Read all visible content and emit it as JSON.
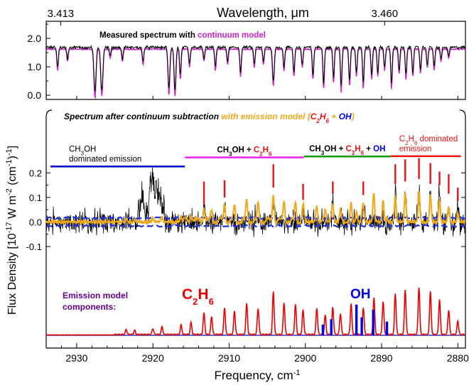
{
  "chart_data": {
    "type": "line",
    "top_axis_title": "Wavelength, μm",
    "top_axis_ticks": [
      "3.413",
      "3.460"
    ],
    "x_axis": {
      "label_main": "Frequency, cm",
      "label_sup": "-1",
      "xlim": [
        2934,
        2879
      ],
      "ticks": [
        2930,
        2920,
        2910,
        2900,
        2890,
        2880
      ]
    },
    "y_axis": {
      "label_html": "Flux Density [10<tspan baseline-shift='super' font-size='11'>-17</tspan> W m<tspan baseline-shift='super' font-size='11'>-2</tspan> (cm<tspan baseline-shift='super' font-size='11'>-1</tspan>)<tspan baseline-shift='super' font-size='11'>-1</tspan>]"
    },
    "top_panel": {
      "ylim": [
        -0.15,
        2.6
      ],
      "yticks": [
        "0.0",
        "1.0",
        "2.0"
      ],
      "annotation_black": "Measured spectrum with",
      "annotation_magenta": "continuum model",
      "series": [
        {
          "name": "Measured spectrum",
          "color": "#000000",
          "continuum": 1.68
        },
        {
          "name": "continuum model",
          "color": "#cc22cc",
          "continuum": 1.62
        }
      ],
      "absorption_lines": [
        {
          "x": 2932.5,
          "depth": 0.7,
          "w": 0.25
        },
        {
          "x": 2931.2,
          "depth": 0.4,
          "w": 0.25
        },
        {
          "x": 2927.6,
          "depth": 1.6,
          "w": 0.35
        },
        {
          "x": 2926.7,
          "depth": 1.55,
          "w": 0.35
        },
        {
          "x": 2925.6,
          "depth": 0.3,
          "w": 0.25
        },
        {
          "x": 2924.0,
          "depth": 0.4,
          "w": 0.25
        },
        {
          "x": 2921.3,
          "depth": 0.5,
          "w": 0.25
        },
        {
          "x": 2917.9,
          "depth": 1.5,
          "w": 0.3
        },
        {
          "x": 2917.1,
          "depth": 1.55,
          "w": 0.3
        },
        {
          "x": 2916.4,
          "depth": 1.0,
          "w": 0.25
        },
        {
          "x": 2915.2,
          "depth": 0.6,
          "w": 0.25
        },
        {
          "x": 2913.3,
          "depth": 0.4,
          "w": 0.25
        },
        {
          "x": 2911.8,
          "depth": 0.7,
          "w": 0.25
        },
        {
          "x": 2910.2,
          "depth": 0.5,
          "w": 0.25
        },
        {
          "x": 2908.5,
          "depth": 0.9,
          "w": 0.25
        },
        {
          "x": 2906.7,
          "depth": 0.6,
          "w": 0.25
        },
        {
          "x": 2905.5,
          "depth": 0.5,
          "w": 0.25
        },
        {
          "x": 2904.2,
          "depth": 1.2,
          "w": 0.3
        },
        {
          "x": 2902.8,
          "depth": 0.7,
          "w": 0.25
        },
        {
          "x": 2901.5,
          "depth": 0.9,
          "w": 0.25
        },
        {
          "x": 2900.4,
          "depth": 0.6,
          "w": 0.25
        },
        {
          "x": 2899.0,
          "depth": 1.0,
          "w": 0.25
        },
        {
          "x": 2897.6,
          "depth": 1.3,
          "w": 0.25
        },
        {
          "x": 2896.3,
          "depth": 1.1,
          "w": 0.25
        },
        {
          "x": 2895.3,
          "depth": 1.4,
          "w": 0.25
        },
        {
          "x": 2894.2,
          "depth": 1.2,
          "w": 0.25
        },
        {
          "x": 2893.3,
          "depth": 0.9,
          "w": 0.25
        },
        {
          "x": 2892.4,
          "depth": 1.3,
          "w": 0.25
        },
        {
          "x": 2891.3,
          "depth": 1.0,
          "w": 0.25
        },
        {
          "x": 2890.5,
          "depth": 0.9,
          "w": 0.25
        },
        {
          "x": 2889.6,
          "depth": 0.7,
          "w": 0.25
        },
        {
          "x": 2888.7,
          "depth": 1.3,
          "w": 0.25
        },
        {
          "x": 2887.7,
          "depth": 0.8,
          "w": 0.25
        },
        {
          "x": 2886.8,
          "depth": 1.0,
          "w": 0.25
        },
        {
          "x": 2885.9,
          "depth": 0.9,
          "w": 0.25
        },
        {
          "x": 2884.9,
          "depth": 0.8,
          "w": 0.25
        },
        {
          "x": 2884.0,
          "depth": 0.6,
          "w": 0.25
        },
        {
          "x": 2883.1,
          "depth": 0.7,
          "w": 0.25
        },
        {
          "x": 2882.2,
          "depth": 0.4,
          "w": 0.25
        },
        {
          "x": 2881.2,
          "depth": 0.3,
          "w": 0.25
        }
      ]
    },
    "bottom_panel": {
      "ylim": [
        -0.34,
        0.34
      ],
      "yticks": [
        "0.2",
        "0.1",
        "0.0",
        "-0.1"
      ],
      "title_black": "Spectrum after continuum subtraction",
      "title_orange": "with emission model (",
      "title_c2h6": "C",
      "title_c2h6_sub1": "2",
      "title_c2h6_h": "H",
      "title_c2h6_sub2": "6",
      "title_plus": " + ",
      "title_oh": "OH",
      "title_close": ")",
      "regions": [
        {
          "label_line1_parts": [
            "CH",
            "3",
            "OH"
          ],
          "label_line2": "dominated emission",
          "color": "#0000cc",
          "x_from": 2934,
          "x_to": 2915.8,
          "y": 0.226
        },
        {
          "label_parts": [
            "CH",
            "3",
            "OH + ",
            "C",
            "2",
            "H",
            "6"
          ],
          "color": "#ee22ee",
          "x_from": 2915.8,
          "x_to": 2900.2,
          "y": 0.263
        },
        {
          "label_parts": [
            "CH",
            "3",
            "OH + ",
            "C",
            "2",
            "H",
            "6",
            " + ",
            "OH"
          ],
          "color": "#119911",
          "x_from": 2900.2,
          "x_to": 2888.8,
          "y": 0.267
        },
        {
          "label_line1_parts": [
            "C",
            "2",
            "H",
            "6",
            " dominated"
          ],
          "label_line2": "emission",
          "color": "#ee1111",
          "x_from": 2888.8,
          "x_to": 2879.6,
          "y": 0.268
        }
      ],
      "zero_band": 0.016,
      "series": [
        {
          "name": "Spectrum after continuum subtraction",
          "color": "#000000"
        },
        {
          "name": "emission model",
          "color": "#f0a818"
        },
        {
          "name": "noise envelope",
          "color": "#2233dd"
        }
      ],
      "ethane_marks": [
        {
          "x": 2913.3,
          "top": 0.165,
          "bottom": 0.07
        },
        {
          "x": 2910.6,
          "top": 0.17,
          "bottom": 0.1
        },
        {
          "x": 2904.2,
          "top": 0.235,
          "bottom": 0.14
        },
        {
          "x": 2900.3,
          "top": 0.155,
          "bottom": 0.09
        },
        {
          "x": 2896.4,
          "top": 0.165,
          "bottom": 0.115
        },
        {
          "x": 2892.4,
          "top": 0.165,
          "bottom": 0.11
        },
        {
          "x": 2888.2,
          "top": 0.235,
          "bottom": 0.155
        },
        {
          "x": 2886.9,
          "top": 0.255,
          "bottom": 0.165
        },
        {
          "x": 2885.1,
          "top": 0.26,
          "bottom": 0.175
        },
        {
          "x": 2883.6,
          "top": 0.24,
          "bottom": 0.155
        },
        {
          "x": 2882.4,
          "top": 0.205,
          "bottom": 0.15
        },
        {
          "x": 2881.2,
          "top": 0.195,
          "bottom": 0.115
        },
        {
          "x": 2880.0,
          "top": 0.14,
          "bottom": 0.085
        }
      ],
      "emission_peaks": [
        {
          "x": 2921.4,
          "h": 0.09
        },
        {
          "x": 2920.3,
          "h": 0.12
        },
        {
          "x": 2920.0,
          "h": 0.15
        },
        {
          "x": 2919.6,
          "h": 0.13
        },
        {
          "x": 2919.2,
          "h": 0.1
        },
        {
          "x": 2913.3,
          "h": 0.08
        },
        {
          "x": 2910.6,
          "h": 0.09
        },
        {
          "x": 2904.2,
          "h": 0.13
        },
        {
          "x": 2900.3,
          "h": 0.07
        },
        {
          "x": 2896.4,
          "h": 0.09
        },
        {
          "x": 2892.4,
          "h": 0.09
        },
        {
          "x": 2888.2,
          "h": 0.13
        },
        {
          "x": 2886.9,
          "h": 0.14
        },
        {
          "x": 2885.1,
          "h": 0.15
        },
        {
          "x": 2883.6,
          "h": 0.13
        },
        {
          "x": 2882.4,
          "h": 0.12
        },
        {
          "x": 2881.2,
          "h": 0.09
        },
        {
          "x": 2880.0,
          "h": 0.06
        }
      ]
    },
    "components": {
      "label_line1": "Emission model",
      "label_line2": "components:",
      "label_color": "#660099",
      "c2h6_label_parts": [
        "C",
        "2",
        "H",
        "6"
      ],
      "c2h6_color": "#ee0000",
      "oh_label": "OH",
      "oh_color": "#0000ee",
      "c2h6_lines": [
        {
          "x": 2923.5,
          "a": 0.12
        },
        {
          "x": 2922.4,
          "a": 0.1
        },
        {
          "x": 2920.0,
          "a": 0.14
        },
        {
          "x": 2918.8,
          "a": 0.18
        },
        {
          "x": 2916.3,
          "a": 0.22
        },
        {
          "x": 2915.0,
          "a": 0.28
        },
        {
          "x": 2913.3,
          "a": 0.5
        },
        {
          "x": 2912.3,
          "a": 0.42
        },
        {
          "x": 2910.6,
          "a": 0.62
        },
        {
          "x": 2909.3,
          "a": 0.55
        },
        {
          "x": 2907.7,
          "a": 0.72
        },
        {
          "x": 2906.2,
          "a": 0.62
        },
        {
          "x": 2904.2,
          "a": 1.0
        },
        {
          "x": 2902.8,
          "a": 0.75
        },
        {
          "x": 2901.3,
          "a": 0.7
        },
        {
          "x": 2900.3,
          "a": 0.58
        },
        {
          "x": 2898.5,
          "a": 0.62
        },
        {
          "x": 2897.4,
          "a": 0.45
        },
        {
          "x": 2896.4,
          "a": 0.64
        },
        {
          "x": 2895.4,
          "a": 0.5
        },
        {
          "x": 2894.0,
          "a": 0.72
        },
        {
          "x": 2892.4,
          "a": 0.64
        },
        {
          "x": 2891.0,
          "a": 0.86
        },
        {
          "x": 2889.8,
          "a": 0.78
        },
        {
          "x": 2888.2,
          "a": 0.96
        },
        {
          "x": 2886.9,
          "a": 1.05
        },
        {
          "x": 2885.1,
          "a": 1.12
        },
        {
          "x": 2883.6,
          "a": 1.0
        },
        {
          "x": 2882.4,
          "a": 0.82
        },
        {
          "x": 2881.2,
          "a": 0.58
        },
        {
          "x": 2880.0,
          "a": 0.32
        }
      ],
      "oh_lines": [
        {
          "x": 2897.7,
          "a": 0.25
        },
        {
          "x": 2896.6,
          "a": 0.38
        },
        {
          "x": 2893.3,
          "a": 0.72
        },
        {
          "x": 2892.6,
          "a": 0.42
        },
        {
          "x": 2891.1,
          "a": 0.6
        },
        {
          "x": 2889.3,
          "a": 0.32
        }
      ]
    }
  }
}
